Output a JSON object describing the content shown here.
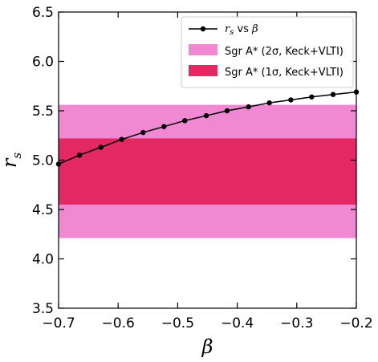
{
  "chart_data": {
    "type": "line",
    "series": [
      {
        "name": "r_s vs β",
        "x": [
          -0.7,
          -0.665,
          -0.629,
          -0.594,
          -0.558,
          -0.523,
          -0.488,
          -0.452,
          -0.417,
          -0.381,
          -0.346,
          -0.31,
          -0.275,
          -0.239,
          -0.2
        ],
        "y": [
          4.96,
          5.05,
          5.13,
          5.21,
          5.28,
          5.34,
          5.4,
          5.45,
          5.5,
          5.54,
          5.58,
          5.61,
          5.64,
          5.665,
          5.69
        ],
        "color": "#000000"
      }
    ],
    "bands": [
      {
        "name": "Sgr A* (2σ, Keck+VLTI)",
        "ymin": 4.21,
        "ymax": 5.56,
        "color": "#F088D2"
      },
      {
        "name": "Sgr A* (1σ, Keck+VLTI)",
        "ymin": 4.55,
        "ymax": 5.22,
        "color": "#E32864"
      }
    ],
    "xlim": [
      -0.7,
      -0.2
    ],
    "ylim": [
      3.5,
      6.5
    ],
    "xticks": [
      -0.7,
      -0.6,
      -0.5,
      -0.4,
      -0.3,
      -0.2
    ],
    "yticks": [
      3.5,
      4.0,
      4.5,
      5.0,
      5.5,
      6.0,
      6.5
    ],
    "xtick_labels": [
      "−0.7",
      "−0.6",
      "−0.5",
      "−0.4",
      "−0.3",
      "−0.2"
    ],
    "ytick_labels": [
      "3.5",
      "4.0",
      "4.5",
      "5.0",
      "5.5",
      "6.0",
      "6.5"
    ],
    "xlabel": "β",
    "ylabel_main": "r",
    "ylabel_sub": "s",
    "legend": {
      "placement": "top-right",
      "entries": [
        {
          "label_main": "r",
          "label_sub": "s",
          "label_rest": " vs ",
          "label_beta": "β"
        },
        {
          "label": "Sgr A* (2σ, Keck+VLTI)"
        },
        {
          "label": "Sgr A* (1σ, Keck+VLTI)"
        }
      ]
    },
    "grid": false
  }
}
